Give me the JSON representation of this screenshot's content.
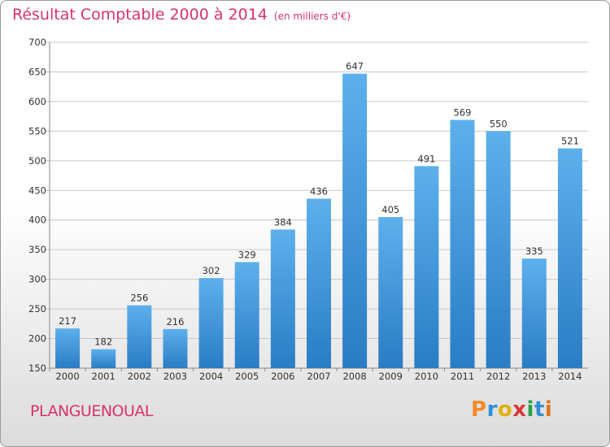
{
  "header": {
    "title": "Résultat Comptable 2000 à 2014",
    "subtitle": "(en milliers d'€)"
  },
  "footer": {
    "town": "PLANGUENOUAL",
    "logo_letters": [
      "P",
      "r",
      "o",
      "x",
      "i",
      "t",
      "i"
    ],
    "logo_colors": [
      "#f28c28",
      "#2f8fd8",
      "#e0b000",
      "#d63a3a",
      "#2b9e4a",
      "#2f8fd8",
      "#e07020"
    ]
  },
  "colors": {
    "bar_light": "#5db0ec",
    "bar_dark": "#2a7cc4",
    "grid": "#c8c8c8",
    "accent": "#d6336b"
  },
  "chart_data": {
    "type": "bar",
    "title": "Résultat Comptable 2000 à 2014",
    "subtitle": "(en milliers d'€)",
    "xlabel": "",
    "ylabel": "",
    "categories": [
      "2000",
      "2001",
      "2002",
      "2003",
      "2004",
      "2005",
      "2006",
      "2007",
      "2008",
      "2009",
      "2010",
      "2011",
      "2012",
      "2013",
      "2014"
    ],
    "values": [
      217,
      182,
      256,
      216,
      302,
      329,
      384,
      436,
      647,
      405,
      491,
      569,
      550,
      335,
      521
    ],
    "ylim": [
      150,
      700
    ],
    "yticks": [
      150,
      200,
      250,
      300,
      350,
      400,
      450,
      500,
      550,
      600,
      650,
      700
    ],
    "grid": true
  }
}
